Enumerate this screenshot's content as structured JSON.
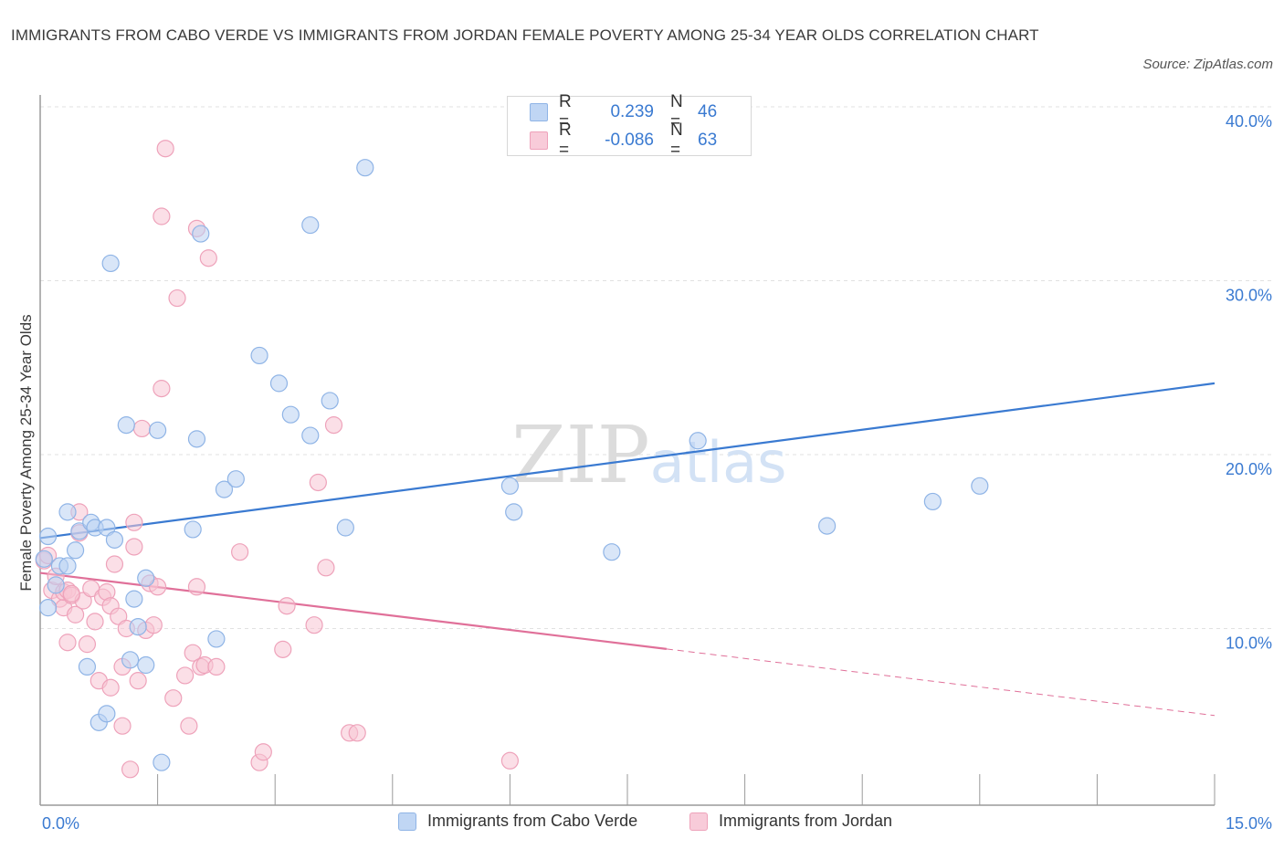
{
  "title": "IMMIGRANTS FROM CABO VERDE VS IMMIGRANTS FROM JORDAN FEMALE POVERTY AMONG 25-34 YEAR OLDS CORRELATION CHART",
  "source": "Source: ZipAtlas.com",
  "watermark": "ZIPatlas",
  "legend": {
    "rows": [
      {
        "r_label": "R =",
        "r_value": "0.239",
        "n_label": "N =",
        "n_value": "46"
      },
      {
        "r_label": "R =",
        "r_value": "-0.086",
        "n_label": "N =",
        "n_value": "63"
      }
    ]
  },
  "colors": {
    "blue_fill": "#b9d1f3",
    "blue_stroke": "#8fb4e6",
    "blue_line": "#3a7ad1",
    "pink_fill": "#f8c4d4",
    "pink_stroke": "#eea2ba",
    "pink_line": "#e07099",
    "tick_label": "#3a7ad1",
    "grid": "#e1e1e1"
  },
  "chart_data": {
    "type": "scatter",
    "title": "IMMIGRANTS FROM CABO VERDE VS IMMIGRANTS FROM JORDAN FEMALE POVERTY AMONG 25-34 YEAR OLDS CORRELATION CHART",
    "xlabel": "",
    "ylabel": "Female Poverty Among 25-34 Year Olds",
    "xlim": [
      0,
      15
    ],
    "ylim": [
      0,
      40
    ],
    "x_tick_labels": [
      "0.0%",
      "15.0%"
    ],
    "y_ticks": [
      10,
      20,
      30,
      40
    ],
    "y_tick_labels": [
      "10.0%",
      "20.0%",
      "30.0%",
      "40.0%"
    ],
    "grid": true,
    "legend_position": "bottom",
    "series": [
      {
        "name": "Immigrants from Cabo Verde",
        "color": "#b9d1f3",
        "trend": {
          "x0": 0,
          "y0": 15.2,
          "x1": 15,
          "y1": 24.1,
          "dashed_from": null
        },
        "points": [
          [
            0.1,
            15.3
          ],
          [
            0.1,
            11.2
          ],
          [
            0.2,
            12.5
          ],
          [
            0.25,
            13.6
          ],
          [
            0.35,
            13.6
          ],
          [
            0.35,
            16.7
          ],
          [
            0.45,
            14.5
          ],
          [
            0.5,
            15.6
          ],
          [
            0.6,
            7.8
          ],
          [
            0.65,
            16.1
          ],
          [
            0.7,
            15.8
          ],
          [
            0.75,
            4.6
          ],
          [
            0.85,
            15.8
          ],
          [
            0.85,
            5.1
          ],
          [
            0.9,
            31.0
          ],
          [
            0.95,
            15.1
          ],
          [
            1.1,
            21.7
          ],
          [
            1.15,
            8.2
          ],
          [
            1.2,
            11.7
          ],
          [
            1.25,
            10.1
          ],
          [
            1.35,
            12.9
          ],
          [
            1.35,
            7.9
          ],
          [
            1.5,
            21.4
          ],
          [
            1.55,
            2.3
          ],
          [
            1.95,
            15.7
          ],
          [
            2.0,
            20.9
          ],
          [
            2.05,
            32.7
          ],
          [
            2.25,
            9.4
          ],
          [
            2.35,
            18.0
          ],
          [
            2.5,
            18.6
          ],
          [
            2.8,
            25.7
          ],
          [
            3.05,
            24.1
          ],
          [
            3.2,
            22.3
          ],
          [
            3.45,
            33.2
          ],
          [
            3.45,
            21.1
          ],
          [
            3.7,
            23.1
          ],
          [
            3.9,
            15.8
          ],
          [
            4.15,
            36.5
          ],
          [
            6.0,
            18.2
          ],
          [
            6.05,
            16.7
          ],
          [
            7.3,
            14.4
          ],
          [
            8.4,
            20.8
          ],
          [
            10.05,
            15.9
          ],
          [
            11.4,
            17.3
          ],
          [
            12.0,
            18.2
          ],
          [
            0.05,
            14.0
          ]
        ]
      },
      {
        "name": "Immigrants from Jordan",
        "color": "#f8c4d4",
        "trend": {
          "x0": 0,
          "y0": 13.2,
          "x1": 15,
          "y1": 5.0,
          "dashed_from": 8.0
        },
        "points": [
          [
            0.05,
            13.9
          ],
          [
            0.1,
            14.2
          ],
          [
            0.15,
            12.2
          ],
          [
            0.2,
            13.0
          ],
          [
            0.25,
            11.7
          ],
          [
            0.3,
            11.2
          ],
          [
            0.3,
            12.1
          ],
          [
            0.35,
            12.2
          ],
          [
            0.35,
            9.2
          ],
          [
            0.4,
            11.9
          ],
          [
            0.45,
            10.8
          ],
          [
            0.5,
            16.7
          ],
          [
            0.5,
            15.5
          ],
          [
            0.55,
            11.6
          ],
          [
            0.6,
            9.1
          ],
          [
            0.65,
            12.3
          ],
          [
            0.7,
            10.4
          ],
          [
            0.75,
            7.0
          ],
          [
            0.8,
            11.8
          ],
          [
            0.85,
            12.1
          ],
          [
            0.9,
            11.3
          ],
          [
            0.9,
            6.6
          ],
          [
            0.95,
            13.7
          ],
          [
            1.0,
            10.7
          ],
          [
            1.05,
            4.4
          ],
          [
            1.05,
            7.8
          ],
          [
            1.1,
            10.0
          ],
          [
            1.15,
            1.9
          ],
          [
            1.2,
            14.7
          ],
          [
            1.2,
            16.1
          ],
          [
            1.25,
            7.0
          ],
          [
            1.3,
            21.5
          ],
          [
            1.35,
            9.9
          ],
          [
            1.4,
            12.6
          ],
          [
            1.45,
            10.2
          ],
          [
            1.5,
            12.4
          ],
          [
            1.55,
            23.8
          ],
          [
            1.55,
            33.7
          ],
          [
            1.6,
            37.6
          ],
          [
            1.7,
            6.0
          ],
          [
            1.75,
            29.0
          ],
          [
            1.85,
            7.3
          ],
          [
            1.9,
            4.4
          ],
          [
            1.95,
            8.6
          ],
          [
            2.0,
            12.4
          ],
          [
            2.0,
            33.0
          ],
          [
            2.05,
            7.8
          ],
          [
            2.15,
            31.3
          ],
          [
            2.1,
            7.9
          ],
          [
            2.25,
            7.8
          ],
          [
            2.55,
            14.4
          ],
          [
            2.8,
            2.3
          ],
          [
            2.85,
            2.9
          ],
          [
            3.1,
            8.8
          ],
          [
            3.15,
            11.3
          ],
          [
            3.5,
            10.2
          ],
          [
            3.55,
            18.4
          ],
          [
            3.65,
            13.5
          ],
          [
            3.75,
            21.7
          ],
          [
            3.95,
            4.0
          ],
          [
            4.05,
            4.0
          ],
          [
            6.0,
            2.4
          ],
          [
            0.4,
            12.0
          ]
        ]
      }
    ]
  },
  "bottom_legend": [
    "Immigrants from Cabo Verde",
    "Immigrants from Jordan"
  ]
}
